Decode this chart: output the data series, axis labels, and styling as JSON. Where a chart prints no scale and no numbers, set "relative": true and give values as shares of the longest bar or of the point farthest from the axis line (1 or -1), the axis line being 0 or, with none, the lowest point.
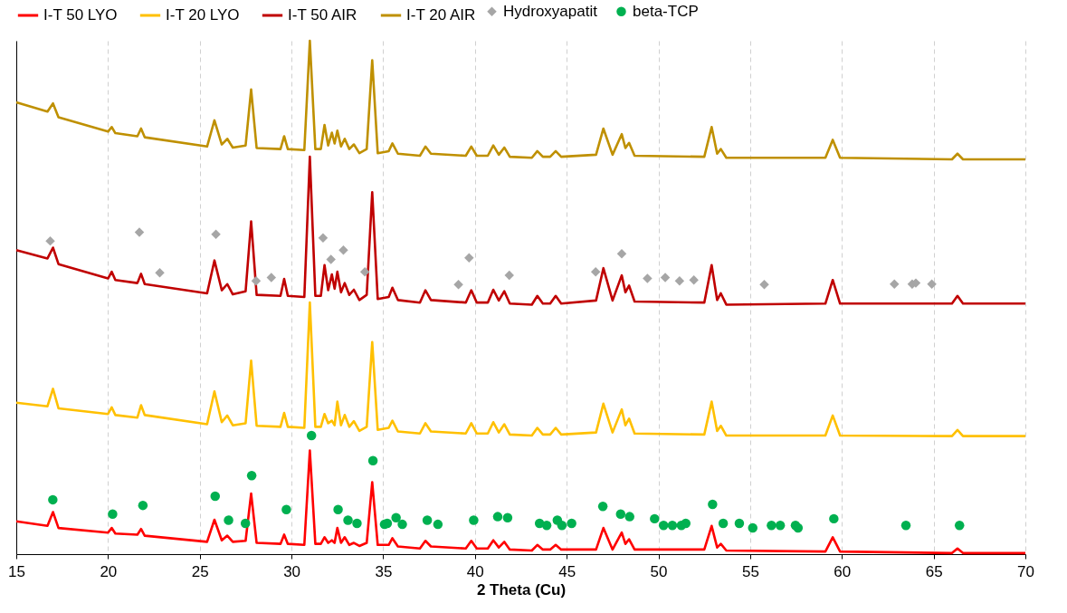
{
  "chart_data": {
    "type": "line",
    "relative": true,
    "xlabel": "2 Theta (Cu)",
    "xlim": [
      15,
      70
    ],
    "xticks": [
      15,
      20,
      25,
      30,
      35,
      40,
      45,
      50,
      55,
      60,
      65,
      70
    ],
    "grid": "x",
    "legend": "top",
    "line_style": "solid",
    "x": [
      15,
      16.7,
      17.0,
      17.3,
      20.0,
      20.2,
      20.4,
      21.6,
      21.8,
      22.0,
      25.4,
      25.8,
      26.2,
      26.5,
      26.8,
      27.5,
      27.8,
      28.1,
      29.4,
      29.6,
      29.8,
      30.7,
      31.0,
      31.3,
      31.6,
      31.8,
      32.0,
      32.2,
      32.35,
      32.5,
      32.7,
      32.9,
      33.15,
      33.4,
      33.7,
      34.1,
      34.4,
      34.7,
      35.3,
      35.5,
      35.8,
      37.0,
      37.3,
      37.6,
      39.5,
      39.8,
      40.1,
      40.7,
      41.0,
      41.3,
      41.6,
      41.9,
      43.1,
      43.4,
      43.7,
      44.1,
      44.4,
      44.7,
      46.6,
      47.0,
      47.5,
      48.0,
      48.2,
      48.4,
      48.7,
      52.5,
      52.9,
      53.2,
      53.4,
      53.7,
      59.1,
      59.5,
      59.9,
      66.0,
      66.3,
      66.6,
      70
    ],
    "series": [
      {
        "name": "I-T 50 LYO",
        "color": "#ff0000",
        "values": [
          0.064,
          0.055,
          0.082,
          0.051,
          0.042,
          0.051,
          0.04,
          0.038,
          0.049,
          0.036,
          0.024,
          0.067,
          0.027,
          0.036,
          0.024,
          0.026,
          0.118,
          0.022,
          0.02,
          0.038,
          0.02,
          0.018,
          0.202,
          0.02,
          0.02,
          0.033,
          0.022,
          0.027,
          0.022,
          0.051,
          0.022,
          0.033,
          0.018,
          0.022,
          0.016,
          0.022,
          0.14,
          0.018,
          0.018,
          0.031,
          0.015,
          0.011,
          0.026,
          0.015,
          0.011,
          0.026,
          0.011,
          0.011,
          0.027,
          0.013,
          0.024,
          0.009,
          0.007,
          0.018,
          0.009,
          0.009,
          0.018,
          0.009,
          0.009,
          0.051,
          0.009,
          0.042,
          0.02,
          0.029,
          0.009,
          0.009,
          0.055,
          0.013,
          0.02,
          0.007,
          0.005,
          0.033,
          0.005,
          0.002,
          0.011,
          0.002,
          0.002
        ]
      },
      {
        "name": "I-T 20 LYO",
        "color": "#ffc000",
        "values": [
          0.295,
          0.288,
          0.322,
          0.284,
          0.273,
          0.286,
          0.271,
          0.266,
          0.29,
          0.271,
          0.253,
          0.317,
          0.257,
          0.27,
          0.251,
          0.255,
          0.377,
          0.25,
          0.248,
          0.275,
          0.248,
          0.246,
          0.49,
          0.248,
          0.248,
          0.273,
          0.255,
          0.26,
          0.251,
          0.297,
          0.251,
          0.271,
          0.248,
          0.259,
          0.24,
          0.248,
          0.413,
          0.242,
          0.246,
          0.26,
          0.239,
          0.235,
          0.255,
          0.239,
          0.235,
          0.255,
          0.235,
          0.235,
          0.257,
          0.237,
          0.253,
          0.233,
          0.231,
          0.246,
          0.233,
          0.233,
          0.246,
          0.233,
          0.237,
          0.293,
          0.237,
          0.282,
          0.251,
          0.264,
          0.235,
          0.233,
          0.297,
          0.24,
          0.25,
          0.231,
          0.231,
          0.27,
          0.231,
          0.23,
          0.242,
          0.23,
          0.23
        ]
      },
      {
        "name": "I-T 50 AIR",
        "color": "#c00000",
        "values": [
          0.592,
          0.576,
          0.597,
          0.565,
          0.537,
          0.55,
          0.534,
          0.528,
          0.546,
          0.526,
          0.508,
          0.572,
          0.514,
          0.526,
          0.506,
          0.512,
          0.648,
          0.505,
          0.503,
          0.536,
          0.503,
          0.501,
          0.774,
          0.503,
          0.503,
          0.563,
          0.514,
          0.545,
          0.517,
          0.55,
          0.51,
          0.528,
          0.505,
          0.515,
          0.495,
          0.505,
          0.705,
          0.497,
          0.501,
          0.519,
          0.495,
          0.49,
          0.514,
          0.495,
          0.49,
          0.514,
          0.49,
          0.49,
          0.515,
          0.494,
          0.512,
          0.488,
          0.486,
          0.503,
          0.488,
          0.488,
          0.503,
          0.488,
          0.494,
          0.557,
          0.494,
          0.543,
          0.51,
          0.523,
          0.492,
          0.49,
          0.563,
          0.495,
          0.508,
          0.486,
          0.488,
          0.534,
          0.488,
          0.488,
          0.503,
          0.488,
          0.488
        ]
      },
      {
        "name": "I-T 20 AIR",
        "color": "#bf9000",
        "values": [
          0.88,
          0.862,
          0.878,
          0.851,
          0.823,
          0.832,
          0.82,
          0.814,
          0.829,
          0.812,
          0.794,
          0.845,
          0.798,
          0.809,
          0.792,
          0.796,
          0.905,
          0.791,
          0.789,
          0.814,
          0.789,
          0.787,
          1,
          0.789,
          0.789,
          0.836,
          0.796,
          0.821,
          0.8,
          0.825,
          0.794,
          0.809,
          0.789,
          0.798,
          0.781,
          0.789,
          0.962,
          0.781,
          0.785,
          0.8,
          0.78,
          0.776,
          0.794,
          0.78,
          0.776,
          0.794,
          0.776,
          0.776,
          0.796,
          0.778,
          0.792,
          0.774,
          0.772,
          0.785,
          0.774,
          0.774,
          0.785,
          0.774,
          0.778,
          0.829,
          0.778,
          0.818,
          0.791,
          0.801,
          0.776,
          0.774,
          0.832,
          0.78,
          0.789,
          0.772,
          0.772,
          0.807,
          0.772,
          0.769,
          0.78,
          0.769,
          0.769
        ]
      },
      {
        "name": "Hydroxyapatit",
        "type": "scatter",
        "marker": "diamond",
        "color": "#a6a6a6",
        "x": [
          16.85,
          21.71,
          22.82,
          25.88,
          28.07,
          28.9,
          31.72,
          32.15,
          32.83,
          34.0,
          39.1,
          39.68,
          41.87,
          46.58,
          48.0,
          49.4,
          50.37,
          51.15,
          51.93,
          55.77,
          62.86,
          63.83,
          64.03,
          64.9
        ],
        "values": [
          0.61,
          0.627,
          0.548,
          0.623,
          0.532,
          0.539,
          0.616,
          0.574,
          0.592,
          0.55,
          0.525,
          0.577,
          0.543,
          0.55,
          0.585,
          0.537,
          0.539,
          0.532,
          0.534,
          0.525,
          0.526,
          0.526,
          0.528,
          0.526
        ]
      },
      {
        "name": "beta-TCP",
        "type": "scatter",
        "marker": "circle",
        "color": "#00b050",
        "x": [
          16.99,
          20.25,
          21.9,
          25.84,
          26.57,
          27.49,
          27.83,
          29.72,
          31.09,
          32.54,
          33.08,
          33.57,
          34.44,
          35.07,
          35.22,
          35.7,
          36.04,
          37.4,
          37.98,
          39.93,
          41.24,
          41.78,
          43.52,
          43.91,
          44.49,
          44.74,
          45.27,
          46.97,
          47.94,
          48.43,
          49.79,
          50.28,
          50.76,
          51.25,
          51.49,
          52.95,
          53.53,
          54.41,
          55.14,
          56.16,
          56.64,
          57.47,
          57.61,
          59.56,
          63.49,
          66.41
        ],
        "values": [
          0.106,
          0.078,
          0.095,
          0.113,
          0.066,
          0.06,
          0.153,
          0.087,
          0.231,
          0.087,
          0.066,
          0.06,
          0.182,
          0.058,
          0.06,
          0.071,
          0.058,
          0.066,
          0.058,
          0.066,
          0.073,
          0.071,
          0.06,
          0.056,
          0.066,
          0.056,
          0.06,
          0.093,
          0.078,
          0.073,
          0.069,
          0.056,
          0.056,
          0.056,
          0.06,
          0.097,
          0.06,
          0.06,
          0.051,
          0.056,
          0.056,
          0.056,
          0.051,
          0.069,
          0.056,
          0.056
        ]
      }
    ]
  }
}
